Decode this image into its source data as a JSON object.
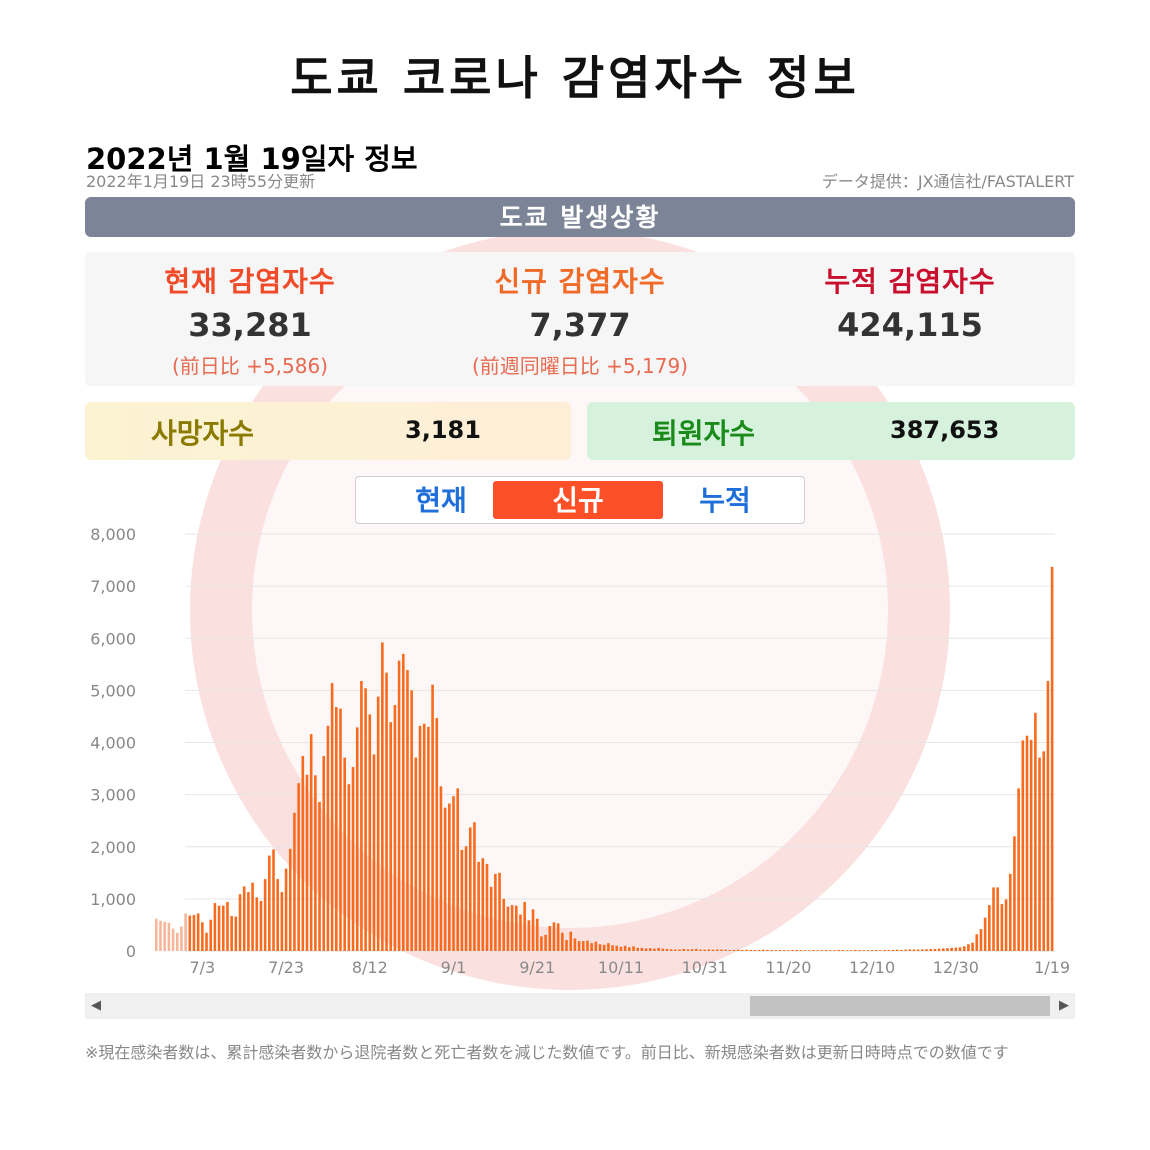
{
  "title": "도쿄 코로나 감염자수 정보",
  "info_date": "2022년 1월 19일자 정보",
  "updated": "2022年1月19日 23時55分更新",
  "source": "データ提供：JX通信社/FASTALERT",
  "section_title": "도쿄 발생상황",
  "stats": [
    {
      "label": "현재 감염자수",
      "value": "33,281",
      "diff": "(前日比 +5,586)",
      "color": "#f04a28"
    },
    {
      "label": "신규 감염자수",
      "value": "7,377",
      "diff": "(前週同曜日比 +5,179)",
      "color": "#f06a28"
    },
    {
      "label": "누적 감염자수",
      "value": "424,115",
      "diff": "",
      "color": "#c8102e"
    }
  ],
  "deaths": {
    "label": "사망자수",
    "value": "3,181",
    "color": "#8a7a00",
    "bg": "#fdf3d8"
  },
  "recovered": {
    "label": "퇴원자수",
    "value": "387,653",
    "color": "#1a8a1a",
    "bg": "#d6f2dc"
  },
  "tabs": [
    {
      "label": "현재",
      "active": false
    },
    {
      "label": "신규",
      "active": true
    },
    {
      "label": "누적",
      "active": false
    }
  ],
  "footnote": "※現在感染者数は、累計感染者数から退院者数と死亡者数を減じた数値です。前日比、新規感染者数は更新日時時点での数値です",
  "chart_data": {
    "type": "bar",
    "x_tick_labels": [
      "7/3",
      "7/23",
      "8/12",
      "9/1",
      "9/21",
      "10/11",
      "10/31",
      "11/20",
      "12/10",
      "12/30",
      "1/19"
    ],
    "y_tick_labels": [
      "0",
      "1,000",
      "2,000",
      "3,000",
      "4,000",
      "5,000",
      "6,000",
      "7,000",
      "8,000"
    ],
    "ylim": [
      0,
      8000
    ],
    "bar_color": "#f86b1e",
    "faded_bar_color": "#f7b69a",
    "faded_count": 8,
    "values": [
      620,
      580,
      560,
      540,
      430,
      350,
      470,
      720,
      680,
      690,
      720,
      550,
      350,
      600,
      920,
      870,
      870,
      940,
      670,
      660,
      1090,
      1240,
      1130,
      1310,
      1030,
      960,
      1380,
      1830,
      1950,
      1380,
      1130,
      1580,
      1960,
      2650,
      3220,
      3740,
      3380,
      4160,
      3370,
      2860,
      3740,
      4320,
      5140,
      4680,
      4650,
      3710,
      3200,
      3530,
      4290,
      5180,
      5040,
      4540,
      3770,
      4880,
      5920,
      5340,
      4390,
      4720,
      5570,
      5700,
      5390,
      5000,
      3710,
      4320,
      4360,
      4300,
      5110,
      4470,
      3160,
      2750,
      2830,
      2970,
      3120,
      1940,
      2010,
      2370,
      2470,
      1710,
      1780,
      1670,
      1230,
      1480,
      1500,
      1000,
      850,
      880,
      870,
      700,
      940,
      590,
      800,
      620,
      280,
      310,
      480,
      550,
      530,
      350,
      210,
      370,
      240,
      190,
      190,
      200,
      150,
      180,
      130,
      120,
      150,
      110,
      100,
      80,
      100,
      70,
      90,
      60,
      60,
      50,
      55,
      45,
      60,
      45,
      40,
      35,
      30,
      30,
      40,
      30,
      35,
      40,
      28,
      25,
      30,
      25,
      30,
      25,
      25,
      18,
      20,
      25,
      20,
      25,
      20,
      18,
      20,
      25,
      20,
      18,
      15,
      20,
      18,
      15,
      18,
      20,
      18,
      15,
      15,
      18,
      15,
      15,
      18,
      15,
      15,
      20,
      18,
      15,
      15,
      20,
      18,
      15,
      15,
      18,
      20,
      15,
      20,
      18,
      22,
      25,
      20,
      25,
      30,
      30,
      28,
      30,
      35,
      40,
      40,
      45,
      50,
      55,
      60,
      65,
      70,
      90,
      130,
      160,
      320,
      420,
      640,
      880,
      1220,
      1220,
      900,
      990,
      1480,
      2200,
      3120,
      4040,
      4130,
      4050,
      4570,
      3710,
      3830,
      5180,
      7370
    ]
  }
}
